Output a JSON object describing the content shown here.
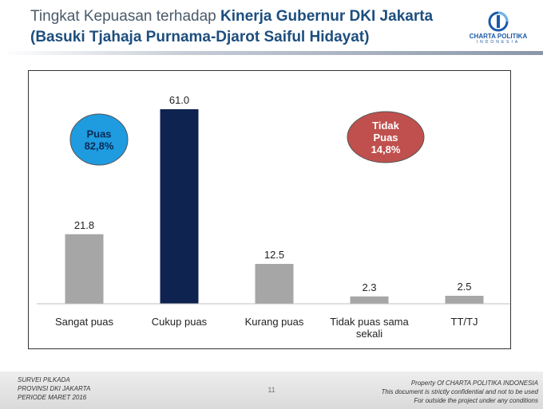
{
  "header": {
    "title_prefix": "Tingkat Kepuasan terhadap ",
    "title_bold": "Kinerja Gubernur DKI Jakarta",
    "title_line2": "(Basuki Tjahaja Purnama-Djarot Saiful Hidayat)"
  },
  "logo": {
    "name": "CHARTA POLITIKA",
    "sub": "INDONESIA"
  },
  "chart_data": {
    "type": "bar",
    "title": "",
    "xlabel": "",
    "ylabel": "",
    "categories": [
      "Sangat puas",
      "Cukup puas",
      "Kurang puas",
      "Tidak puas sama sekali",
      "TT/TJ"
    ],
    "category_lines": [
      [
        "Sangat puas"
      ],
      [
        "Cukup puas"
      ],
      [
        "Kurang puas"
      ],
      [
        "Tidak puas sama",
        "sekali"
      ],
      [
        "TT/TJ"
      ]
    ],
    "values": [
      21.8,
      61.0,
      12.5,
      2.3,
      2.5
    ],
    "value_labels": [
      "21.8",
      "61.0",
      "12.5",
      "2.3",
      "2.5"
    ],
    "bar_colors": [
      "#a6a6a6",
      "#0f2350",
      "#a6a6a6",
      "#a6a6a6",
      "#a6a6a6"
    ],
    "ylim": [
      0,
      61
    ],
    "grid": false,
    "legend": "none",
    "annotations": [
      {
        "lines": [
          "Puas",
          "82,8%"
        ],
        "color": "#1f9be0",
        "text_color": "#0a2a55"
      },
      {
        "lines": [
          "Tidak",
          "Puas",
          "14,8%"
        ],
        "color": "#c0504d",
        "text_color": "#ffffff"
      }
    ]
  },
  "footer": {
    "left": [
      "SURVEI PILKADA",
      "PROVINSI DKI JAKARTA",
      "PERIODE  MARET 2016"
    ],
    "page": "11",
    "right": [
      "Property Of CHARTA POLITIKA INDONESIA",
      "This document is strictly confidential and not to be used",
      "For  outside the project under any conditions"
    ]
  }
}
